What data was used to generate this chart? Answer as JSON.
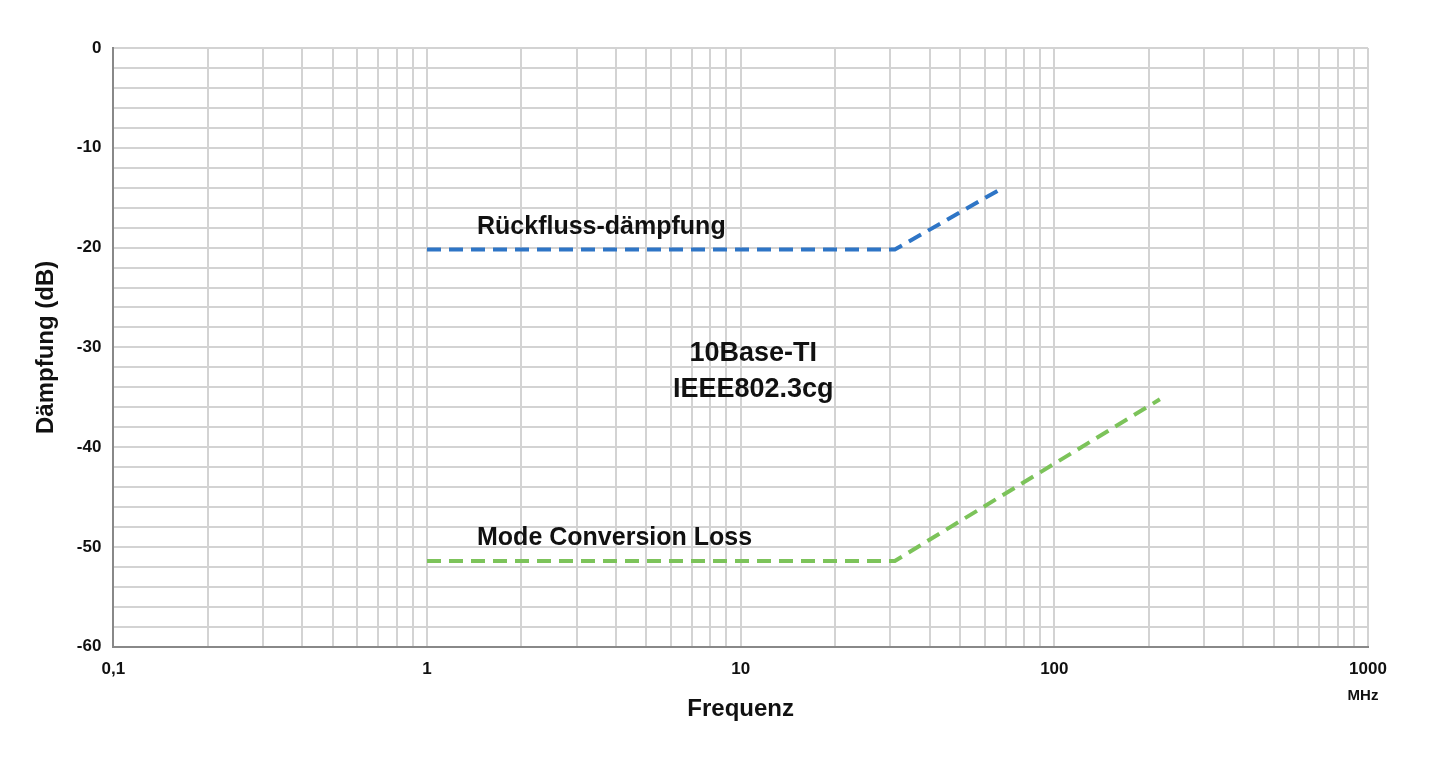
{
  "chart_data": {
    "type": "line",
    "xlabel": "Frequenz",
    "ylabel": "Dämpfung (dB)",
    "annotations": [
      "10Base-TI\nIEEE802.3cg",
      "MHz"
    ],
    "log": "x",
    "grid": true,
    "legend": false,
    "marker": "none",
    "line_style": "dashed",
    "xlim": [
      0.1,
      1000
    ],
    "xticks": [
      {
        "value": 0.1,
        "label": "0,1"
      },
      {
        "value": 0.2,
        "label": null
      },
      {
        "value": 0.3,
        "label": null
      },
      {
        "value": 0.4,
        "label": null
      },
      {
        "value": 0.5,
        "label": null
      },
      {
        "value": 0.6,
        "label": null
      },
      {
        "value": 0.7,
        "label": null
      },
      {
        "value": 0.8,
        "label": null
      },
      {
        "value": 0.9,
        "label": null
      },
      1,
      {
        "value": 2,
        "label": null
      },
      {
        "value": 3,
        "label": null
      },
      {
        "value": 4,
        "label": null
      },
      {
        "value": 5,
        "label": null
      },
      {
        "value": 6,
        "label": null
      },
      {
        "value": 7,
        "label": null
      },
      {
        "value": 8,
        "label": null
      },
      {
        "value": 9,
        "label": null
      },
      10,
      {
        "value": 20,
        "label": null
      },
      {
        "value": 30,
        "label": null
      },
      {
        "value": 40,
        "label": null
      },
      {
        "value": 50,
        "label": null
      },
      {
        "value": 60,
        "label": null
      },
      {
        "value": 70,
        "label": null
      },
      {
        "value": 80,
        "label": null
      },
      {
        "value": 90,
        "label": null
      },
      100,
      {
        "value": 200,
        "label": null
      },
      {
        "value": 300,
        "label": null
      },
      {
        "value": 400,
        "label": null
      },
      {
        "value": 500,
        "label": null
      },
      {
        "value": 600,
        "label": null
      },
      {
        "value": 700,
        "label": null
      },
      {
        "value": 800,
        "label": null
      },
      {
        "value": 900,
        "label": null
      },
      1000
    ],
    "ylim": [
      -60,
      0
    ],
    "yticks": [
      -60,
      {
        "value": -58,
        "label": null
      },
      {
        "value": -56,
        "label": null
      },
      {
        "value": -54,
        "label": null
      },
      {
        "value": -52,
        "label": null
      },
      -50,
      {
        "value": -48,
        "label": null
      },
      {
        "value": -46,
        "label": null
      },
      {
        "value": -44,
        "label": null
      },
      {
        "value": -42,
        "label": null
      },
      -40,
      {
        "value": -38,
        "label": null
      },
      {
        "value": -36,
        "label": null
      },
      {
        "value": -34,
        "label": null
      },
      {
        "value": -32,
        "label": null
      },
      -30,
      {
        "value": -28,
        "label": null
      },
      {
        "value": -26,
        "label": null
      },
      {
        "value": -24,
        "label": null
      },
      {
        "value": -22,
        "label": null
      },
      -20,
      {
        "value": -18,
        "label": null
      },
      {
        "value": -16,
        "label": null
      },
      {
        "value": -14,
        "label": null
      },
      {
        "value": -12,
        "label": null
      },
      -10,
      {
        "value": -8,
        "label": null
      },
      {
        "value": -6,
        "label": null
      },
      {
        "value": -4,
        "label": null
      },
      {
        "value": -2,
        "label": null
      },
      0
    ],
    "series": [
      {
        "name": "Rückfluss-dämpfung",
        "color": "#2e75c6",
        "x": [
          1,
          31,
          66
        ],
        "values": [
          -20.2,
          -20.2,
          -14.3
        ]
      },
      {
        "name": "Mode Conversion Loss",
        "color": "#7cc35a",
        "x": [
          1,
          31,
          217
        ],
        "values": [
          -51.4,
          -51.4,
          -35.2
        ]
      }
    ]
  }
}
